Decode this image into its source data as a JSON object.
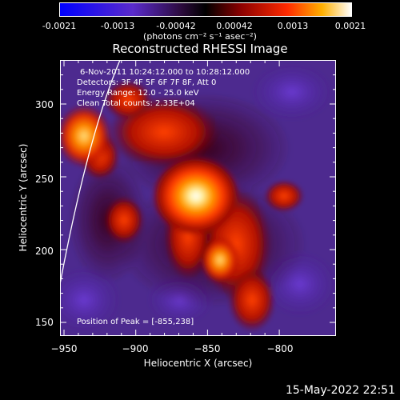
{
  "colorbar": {
    "ticks": [
      "-0.0021",
      "-0.0013",
      "-0.00042",
      "0.00042",
      "0.0013",
      "0.0021"
    ],
    "units": "(photons cm⁻² s⁻¹ asec⁻²)"
  },
  "chart_data": {
    "type": "heatmap",
    "title": "Reconstructed RHESSI Image",
    "xlabel": "Heliocentric X (arcsec)",
    "ylabel": "Heliocentric Y (arcsec)",
    "xlim": [
      -960,
      -840
    ],
    "ylim": [
      140,
      330
    ],
    "x_ticks": [
      "−950",
      "−900",
      "−850",
      "−800"
    ],
    "y_ticks": [
      "150",
      "200",
      "250",
      "300"
    ],
    "colorbar_range": [
      -0.0021,
      0.0021
    ],
    "peak": [
      -855,
      238
    ],
    "sources": [
      {
        "x": -855,
        "y": 238,
        "intensity": 1.0
      },
      {
        "x": -935,
        "y": 295,
        "intensity": 0.72
      }
    ],
    "annotations": {
      "line1": "6-Nov-2011 10:24:12.000 to 10:28:12.000",
      "line2": "Detectors: 3F 4F 5F 6F 7F 8F, Att 0",
      "line3": "Energy Range: 12.0 - 25.0 keV",
      "line4": "Clean    Total counts: 2.33E+04",
      "peak_label": "Position of Peak = [-855,238]"
    }
  },
  "footer": {
    "timestamp": "15-May-2022 22:51"
  }
}
